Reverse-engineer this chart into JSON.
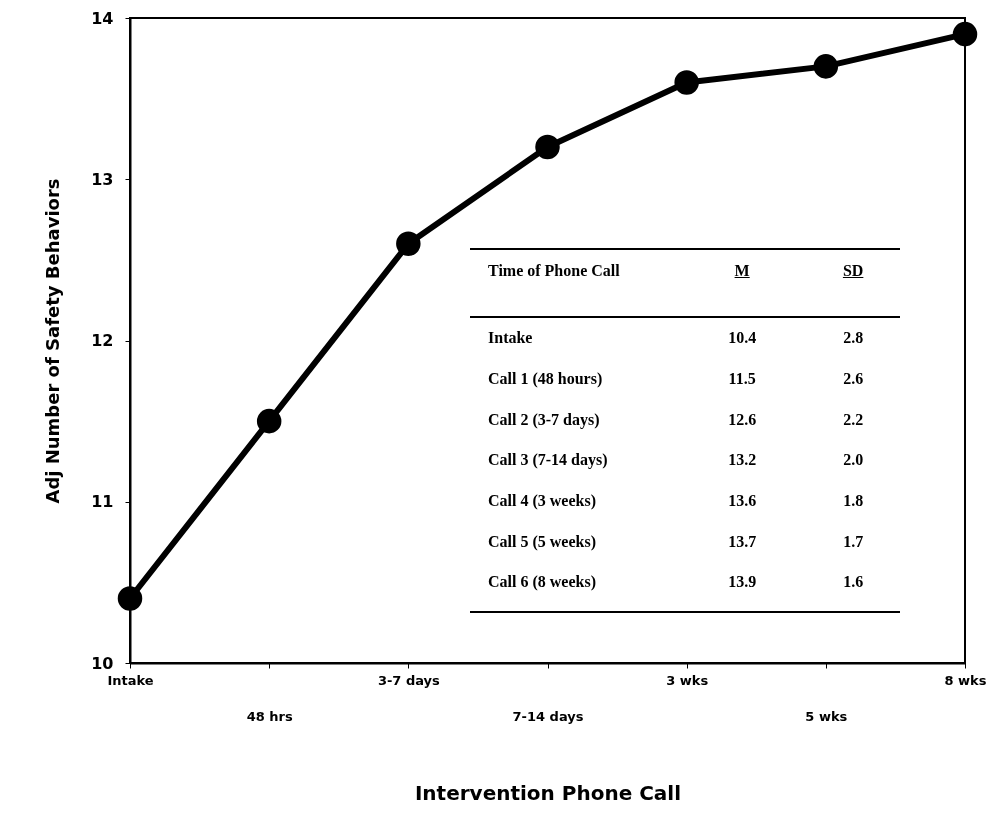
{
  "chart_data": {
    "type": "line",
    "xlabel": "Intervention Phone Call",
    "ylabel": "Adj Number of Safety Behaviors",
    "categories": [
      "Intake",
      "48 hrs",
      "3-7 days",
      "7-14 days",
      "3 wks",
      "5 wks",
      "8 wks"
    ],
    "values": [
      10.4,
      11.5,
      12.6,
      13.2,
      13.6,
      13.7,
      13.9
    ],
    "color": "#000000",
    "marker": "circle",
    "line_style": "solid",
    "grid": false,
    "ylim": [
      10,
      14
    ],
    "yticks": [
      10,
      11,
      12,
      13,
      14
    ],
    "annotations": [
      "Time of Phone Call",
      "M",
      "SD",
      "Intake",
      "Call 1 (48 hours)",
      "Call 2 (3-7 days)",
      "Call 3 (7-14 days)",
      "Call 4 (3 weeks)",
      "Call 5 (5 weeks)",
      "Call 6 (8 weeks)",
      "10.4",
      "11.5",
      "12.6",
      "13.2",
      "13.6",
      "13.7",
      "13.9",
      "2.8",
      "2.6",
      "2.2",
      "2.0",
      "1.8",
      "1.7",
      "1.6"
    ]
  }
}
